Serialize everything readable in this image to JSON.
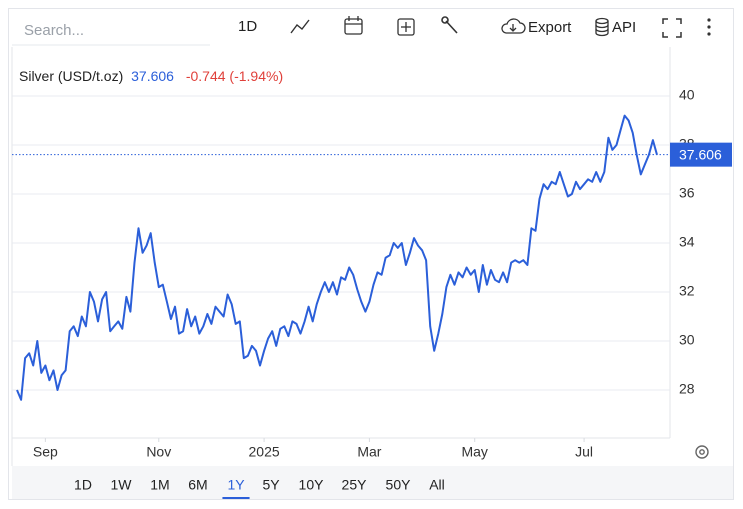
{
  "search_placeholder": "Search...",
  "toolbar": {
    "interval": "1D",
    "export": "Export",
    "api": "API"
  },
  "chart_data": {
    "type": "line",
    "title": "Silver (USD/t.oz)",
    "last_price": 37.606,
    "change": "-0.744 (-1.94%)",
    "series": [
      {
        "color": "#2b5fd9",
        "values": [
          28.0,
          27.6,
          29.3,
          29.5,
          29.0,
          30.0,
          28.7,
          29.0,
          28.4,
          28.8,
          28.0,
          28.6,
          28.8,
          30.4,
          30.6,
          30.2,
          31.0,
          30.6,
          32.0,
          31.6,
          30.8,
          31.7,
          32.0,
          30.4,
          30.6,
          30.8,
          30.5,
          31.8,
          31.2,
          33.2,
          34.6,
          33.6,
          33.9,
          34.4,
          33.2,
          32.2,
          32.3,
          31.6,
          30.9,
          31.4,
          30.3,
          30.4,
          31.3,
          30.6,
          31.0,
          30.3,
          30.6,
          31.1,
          30.7,
          31.4,
          31.2,
          31.0,
          31.9,
          31.5,
          30.7,
          30.8,
          29.3,
          29.4,
          29.8,
          29.6,
          29.0,
          29.6,
          30.1,
          30.4,
          29.8,
          30.5,
          30.6,
          30.2,
          30.8,
          30.7,
          30.3,
          30.8,
          31.4,
          30.8,
          31.5,
          32.0,
          32.4,
          32.0,
          32.4,
          31.9,
          32.6,
          32.5,
          33.0,
          32.7,
          32.1,
          31.6,
          31.2,
          31.6,
          32.3,
          32.8,
          32.7,
          33.4,
          33.5,
          34.0,
          33.8,
          34.0,
          33.1,
          33.6,
          34.2,
          33.9,
          33.7,
          33.3,
          30.6,
          29.6,
          30.3,
          31.1,
          32.2,
          32.7,
          32.3,
          32.8,
          32.6,
          33.0,
          32.7,
          32.9,
          32.0,
          33.1,
          32.3,
          32.9,
          32.5,
          32.4,
          32.8,
          32.4,
          33.2,
          33.3,
          33.2,
          33.3,
          33.1,
          34.6,
          34.5,
          35.8,
          36.4,
          36.2,
          36.5,
          36.4,
          36.9,
          36.4,
          35.9,
          36.0,
          36.5,
          36.2,
          36.4,
          36.6,
          36.5,
          36.9,
          36.5,
          36.9,
          38.3,
          37.8,
          38.0,
          38.6,
          39.2,
          39.0,
          38.5,
          37.6,
          36.8,
          37.2,
          37.6,
          38.2,
          37.6
        ]
      }
    ],
    "xlim": [
      0,
      158
    ],
    "xticks": [
      {
        "value": 7,
        "label": "Sep"
      },
      {
        "value": 35,
        "label": "Nov"
      },
      {
        "value": 61,
        "label": "2025"
      },
      {
        "value": 87,
        "label": "Mar"
      },
      {
        "value": 113,
        "label": "May"
      },
      {
        "value": 140,
        "label": "Jul"
      }
    ],
    "ylim": [
      26,
      42
    ],
    "yticks": [
      28,
      30,
      32,
      34,
      36,
      38,
      40
    ],
    "grid": true
  },
  "range_buttons": [
    "1D",
    "1W",
    "1M",
    "6M",
    "1Y",
    "5Y",
    "10Y",
    "25Y",
    "50Y",
    "All"
  ],
  "active_range": "1Y"
}
